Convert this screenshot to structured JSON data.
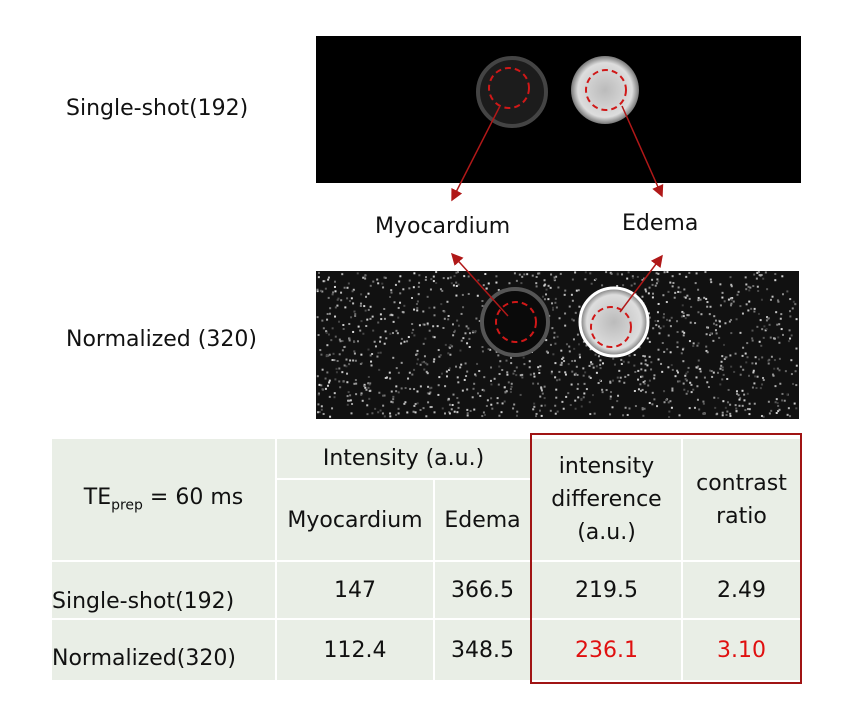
{
  "images": [
    {
      "label": "Single-shot(192)"
    },
    {
      "label": "Normalized (320)"
    }
  ],
  "callouts": {
    "left": "Myocardium",
    "right": "Edema"
  },
  "table": {
    "te": {
      "main": "TE",
      "sub": "prep",
      "rest": " = 60 ms"
    },
    "intensity_header": "Intensity (a.u.)",
    "columns": [
      "Myocardium",
      "Edema",
      "intensity difference (a.u.)",
      "contrast ratio"
    ],
    "rows": [
      [
        "Single-shot(192)",
        "147",
        "366.5",
        "219.5",
        "2.49"
      ],
      [
        "Normalized(320)",
        "112.4",
        "348.5",
        "236.1",
        "3.10"
      ]
    ]
  }
}
